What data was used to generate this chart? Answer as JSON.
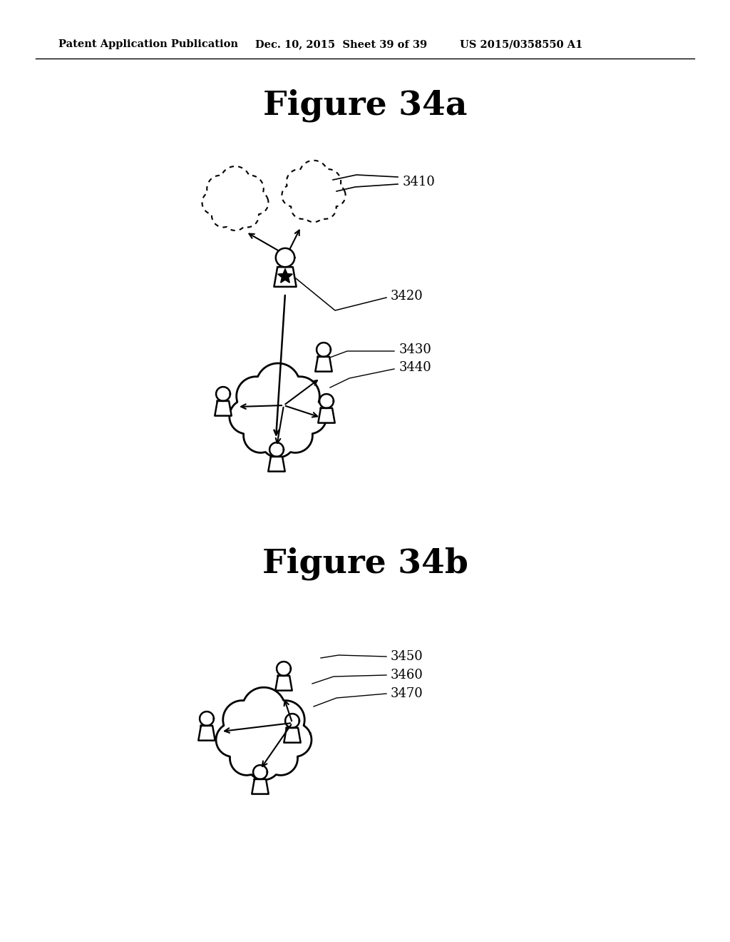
{
  "title_a": "Figure 34a",
  "title_b": "Figure 34b",
  "header_left": "Patent Application Publication",
  "header_mid": "Dec. 10, 2015  Sheet 39 of 39",
  "header_right": "US 2015/0358550 A1",
  "bg_color": "#ffffff",
  "line_color": "#000000",
  "label_3410": "3410",
  "label_3420": "3420",
  "label_3430": "3430",
  "label_3440": "3440",
  "label_3450": "3450",
  "label_3460": "3460",
  "label_3470": "3470"
}
